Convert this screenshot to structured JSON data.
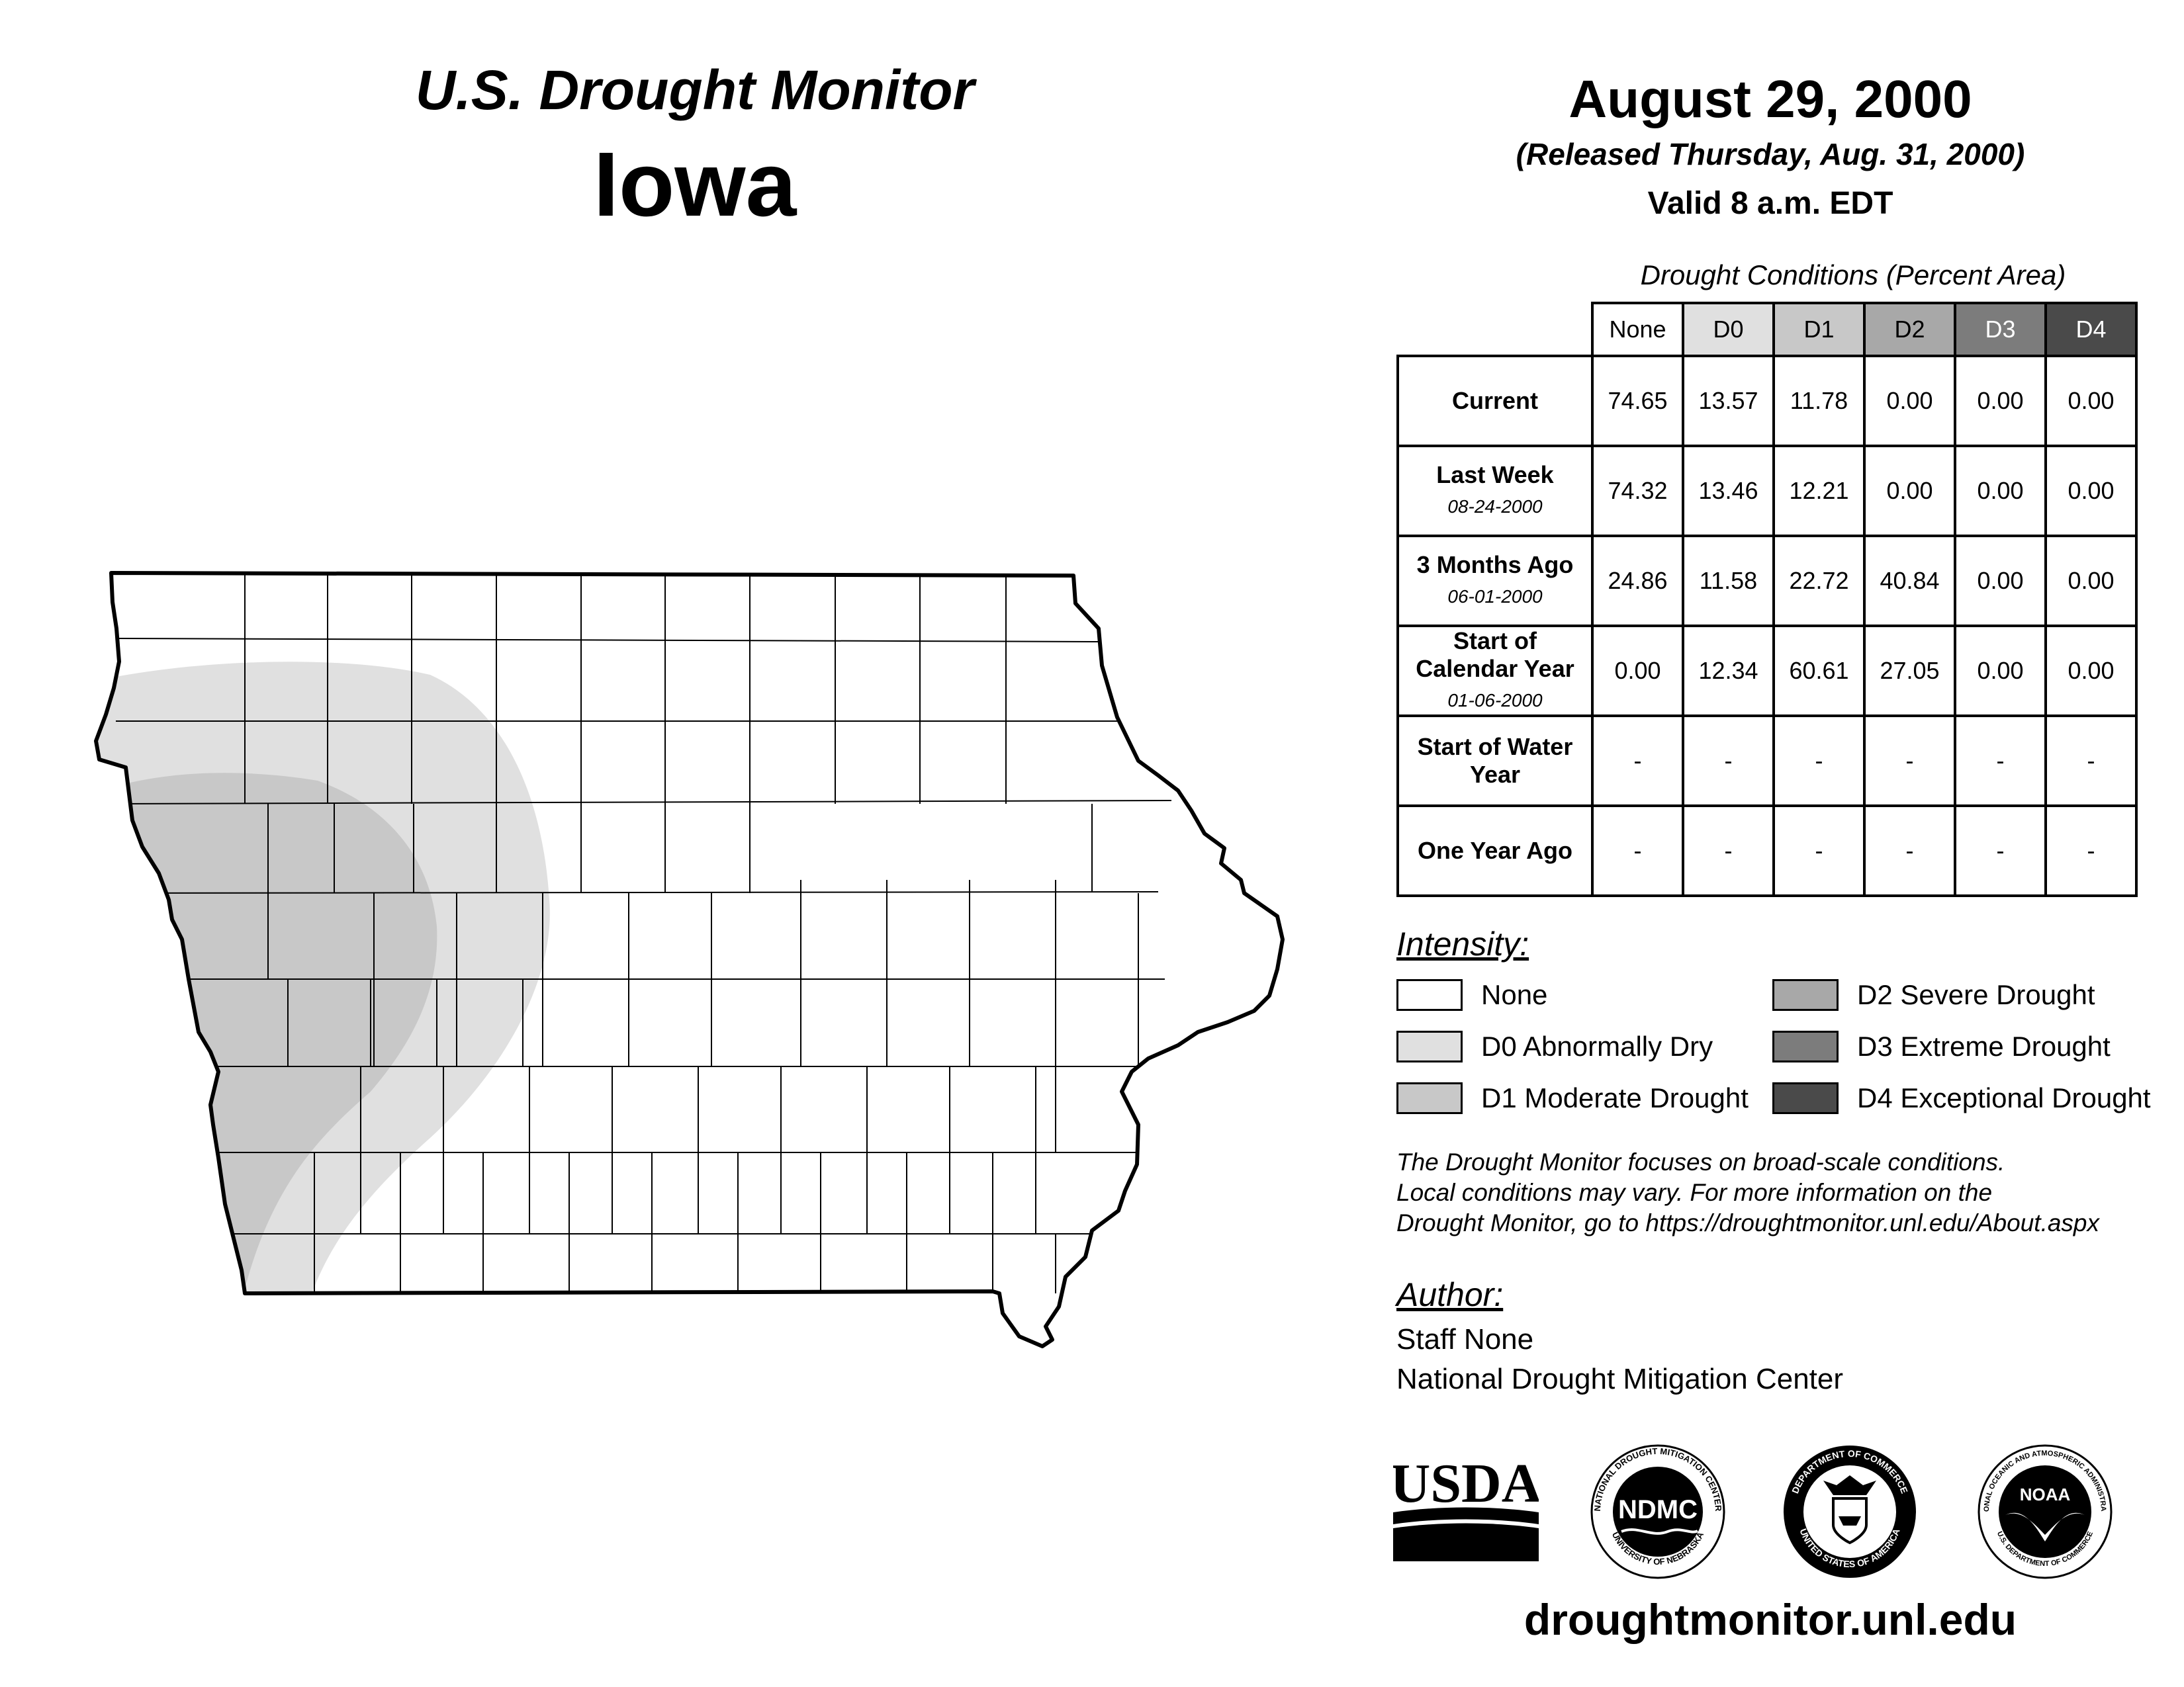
{
  "header": {
    "title": "U.S. Drought Monitor",
    "state": "Iowa"
  },
  "map_info": {
    "date": "August 29, 2000",
    "released": "(Released Thursday, Aug. 31, 2000)",
    "valid": "Valid 8 a.m. EDT"
  },
  "table": {
    "caption": "Drought Conditions (Percent Area)",
    "columns": [
      "None",
      "D0",
      "D1",
      "D2",
      "D3",
      "D4"
    ],
    "column_colors": [
      "#ffffff",
      "#e0e0e0",
      "#c8c8c8",
      "#a8a8a8",
      "#7c7c7c",
      "#4a4a4a"
    ],
    "column_text_colors": [
      "#000000",
      "#000000",
      "#000000",
      "#000000",
      "#ffffff",
      "#ffffff"
    ],
    "rows": [
      {
        "label": "Current",
        "date": "",
        "values": [
          "74.65",
          "13.57",
          "11.78",
          "0.00",
          "0.00",
          "0.00"
        ]
      },
      {
        "label": "Last Week",
        "date": "08-24-2000",
        "values": [
          "74.32",
          "13.46",
          "12.21",
          "0.00",
          "0.00",
          "0.00"
        ]
      },
      {
        "label": "3 Months Ago",
        "date": "06-01-2000",
        "values": [
          "24.86",
          "11.58",
          "22.72",
          "40.84",
          "0.00",
          "0.00"
        ]
      },
      {
        "label": "Start of Calendar Year",
        "date": "01-06-2000",
        "values": [
          "0.00",
          "12.34",
          "60.61",
          "27.05",
          "0.00",
          "0.00"
        ]
      },
      {
        "label": "Start of Water Year",
        "date": "",
        "values": [
          "-",
          "-",
          "-",
          "-",
          "-",
          "-"
        ]
      },
      {
        "label": "One Year Ago",
        "date": "",
        "values": [
          "-",
          "-",
          "-",
          "-",
          "-",
          "-"
        ]
      }
    ]
  },
  "legend": {
    "title": "Intensity:",
    "items": [
      {
        "label": "None",
        "color": "#ffffff"
      },
      {
        "label": "D0 Abnormally Dry",
        "color": "#e0e0e0"
      },
      {
        "label": "D1 Moderate Drought",
        "color": "#c8c8c8"
      },
      {
        "label": "D2 Severe Drought",
        "color": "#a8a8a8"
      },
      {
        "label": "D3 Extreme Drought",
        "color": "#7c7c7c"
      },
      {
        "label": "D4 Exceptional Drought",
        "color": "#4a4a4a"
      }
    ]
  },
  "note": {
    "line1": "The Drought Monitor focuses on broad-scale conditions.",
    "line2": "Local conditions may vary. For more information on the",
    "line3": "Drought Monitor, go to https://droughtmonitor.unl.edu/About.aspx"
  },
  "author": {
    "title": "Author:",
    "name": "Staff None",
    "org": "National Drought Mitigation Center"
  },
  "logos": {
    "usda": "USDA",
    "ndmc": "NDMC",
    "ndmc_ring_top": "NATIONAL DROUGHT MITIGATION CENTER",
    "ndmc_ring_bottom": "UNIVERSITY OF NEBRASKA",
    "doc_ring_top": "DEPARTMENT OF COMMERCE",
    "doc_ring_bottom": "UNITED STATES OF AMERICA",
    "noaa": "NOAA",
    "noaa_ring_top": "NATIONAL OCEANIC AND ATMOSPHERIC ADMINISTRATION",
    "noaa_ring_bottom": "U.S. DEPARTMENT OF COMMERCE"
  },
  "footer": {
    "url": "droughtmonitor.unl.edu"
  },
  "colors": {
    "none": "#ffffff",
    "d0": "#e0e0e0",
    "d1": "#c8c8c8",
    "outline": "#000000"
  }
}
